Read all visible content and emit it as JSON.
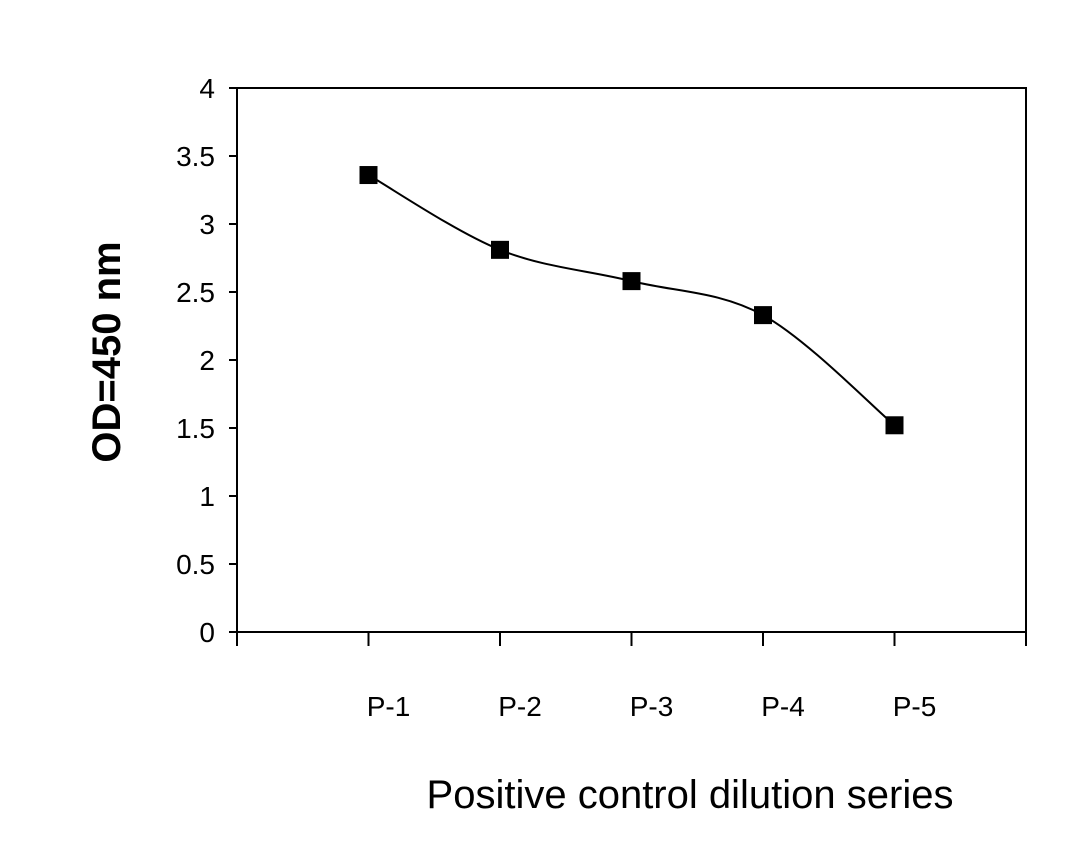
{
  "chart_data": {
    "type": "line",
    "categories": [
      "P-1",
      "P-2",
      "P-3",
      "P-4",
      "P-5"
    ],
    "series": [
      {
        "values": [
          3.36,
          2.81,
          2.58,
          2.33,
          1.52
        ]
      }
    ],
    "title": "",
    "xlabel": "Positive control dilution series",
    "ylabel": "OD=450 nm",
    "ylim": [
      0,
      4
    ],
    "yticks": [
      "0",
      "0.5",
      "1",
      "1.5",
      "2",
      "2.5",
      "3",
      "3.5",
      "4"
    ],
    "grid": false,
    "legend": "none",
    "marker": "square",
    "line_style": "smooth",
    "colors": {
      "line": "#000000",
      "marker": "#000000",
      "axis": "#000000"
    }
  }
}
